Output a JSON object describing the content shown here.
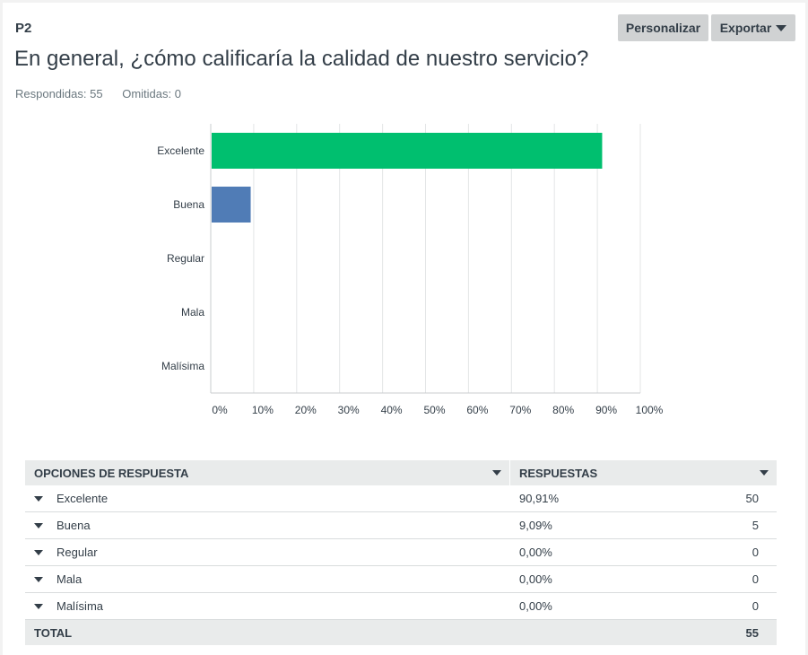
{
  "question": {
    "number": "P2",
    "title": "En general, ¿cómo calificaría la calidad de nuestro servicio?",
    "answered": "Respondidas: 55",
    "skipped": "Omitidas: 0"
  },
  "buttons": {
    "customize": "Personalizar",
    "export": "Exportar"
  },
  "colors": {
    "excelente": "#00bf6f",
    "buena": "#507cb6"
  },
  "chart_data": {
    "type": "bar",
    "orientation": "horizontal",
    "categories": [
      "Excelente",
      "Buena",
      "Regular",
      "Mala",
      "Malísima"
    ],
    "values": [
      90.91,
      9.09,
      0,
      0,
      0
    ],
    "xlim": [
      0,
      100
    ],
    "x_ticks": [
      "0%",
      "10%",
      "20%",
      "30%",
      "40%",
      "50%",
      "60%",
      "70%",
      "80%",
      "90%",
      "100%"
    ],
    "grid": true
  },
  "table": {
    "header_options": "OPCIONES DE RESPUESTA",
    "header_responses": "RESPUESTAS",
    "rows": [
      {
        "label": "Excelente",
        "percent": "90,91%",
        "count": "50"
      },
      {
        "label": "Buena",
        "percent": "9,09%",
        "count": "5"
      },
      {
        "label": "Regular",
        "percent": "0,00%",
        "count": "0"
      },
      {
        "label": "Mala",
        "percent": "0,00%",
        "count": "0"
      },
      {
        "label": "Malísima",
        "percent": "0,00%",
        "count": "0"
      }
    ],
    "total_label": "TOTAL",
    "total_count": "55"
  }
}
